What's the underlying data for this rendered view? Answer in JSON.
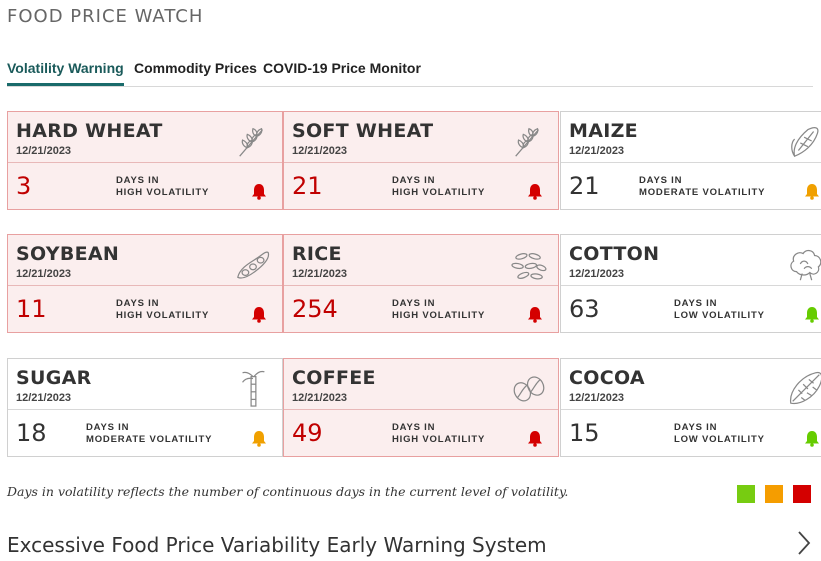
{
  "header": {
    "title": "FOOD PRICE WATCH"
  },
  "tabs": [
    {
      "label": "Volatility Warning",
      "active": true
    },
    {
      "label": "Commodity Prices",
      "active": false
    },
    {
      "label": "COVID-19 Price Monitor",
      "active": false
    }
  ],
  "cards": [
    {
      "name": "HARD WHEAT",
      "date": "12/21/2023",
      "days": "3",
      "label_line1": "DAYS IN",
      "label_line2": "HIGH VOLATILITY",
      "level": "high",
      "icon": "wheat-icon"
    },
    {
      "name": "SOFT WHEAT",
      "date": "12/21/2023",
      "days": "21",
      "label_line1": "DAYS IN",
      "label_line2": "HIGH VOLATILITY",
      "level": "high",
      "icon": "wheat-icon"
    },
    {
      "name": "MAIZE",
      "date": "12/21/2023",
      "days": "21",
      "label_line1": "DAYS IN",
      "label_line2": "MODERATE VOLATILITY",
      "level": "moderate",
      "icon": "corn-icon"
    },
    {
      "name": "SOYBEAN",
      "date": "12/21/2023",
      "days": "11",
      "label_line1": "DAYS IN",
      "label_line2": "HIGH VOLATILITY",
      "level": "high",
      "icon": "soybean-icon"
    },
    {
      "name": "RICE",
      "date": "12/21/2023",
      "days": "254",
      "label_line1": "DAYS IN",
      "label_line2": "HIGH VOLATILITY",
      "level": "high",
      "icon": "rice-icon"
    },
    {
      "name": "COTTON",
      "date": "12/21/2023",
      "days": "63",
      "label_line1": "DAYS IN",
      "label_line2": "LOW VOLATILITY",
      "level": "low",
      "icon": "cotton-icon"
    },
    {
      "name": "SUGAR",
      "date": "12/21/2023",
      "days": "18",
      "label_line1": "DAYS IN",
      "label_line2": "MODERATE VOLATILITY",
      "level": "moderate",
      "icon": "sugarcane-icon"
    },
    {
      "name": "COFFEE",
      "date": "12/21/2023",
      "days": "49",
      "label_line1": "DAYS IN",
      "label_line2": "HIGH VOLATILITY",
      "level": "high",
      "icon": "coffee-bean-icon"
    },
    {
      "name": "COCOA",
      "date": "12/21/2023",
      "days": "15",
      "label_line1": "DAYS IN",
      "label_line2": "LOW VOLATILITY",
      "level": "low",
      "icon": "cocoa-pod-icon"
    }
  ],
  "bell_colors": {
    "high": "#d40000",
    "moderate": "#f0a000",
    "low": "#66cc00"
  },
  "note": "Days in volatility reflects the number of continuous days in the current level of volatility.",
  "legend_colors": [
    "#77cc11",
    "#f59d00",
    "#d40000"
  ],
  "footer": {
    "title": "Excessive Food Price Variability Early Warning System"
  }
}
